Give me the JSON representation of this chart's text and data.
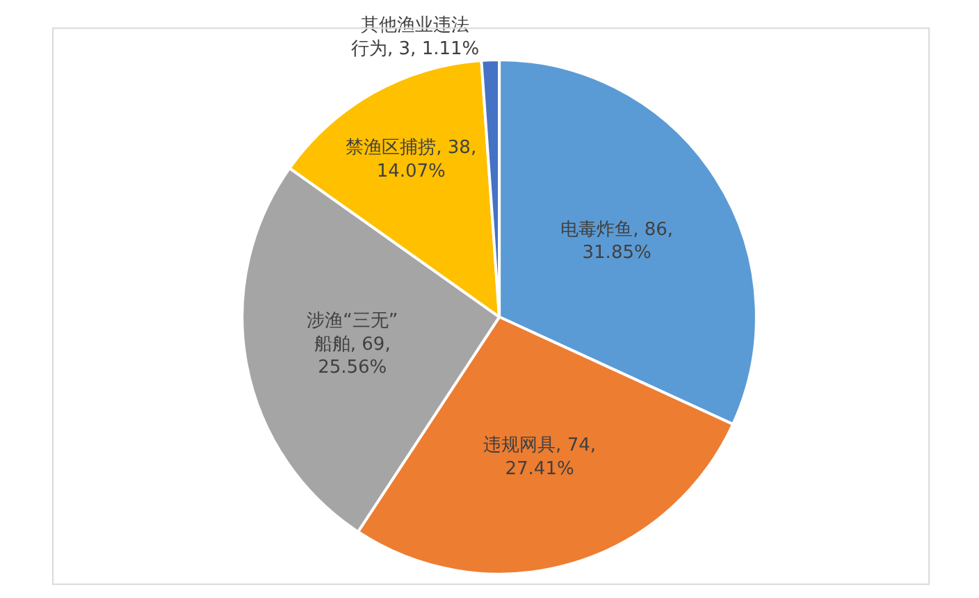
{
  "chart_data": {
    "type": "pie",
    "categories": [
      "电毒炸鱼",
      "违规网具",
      "涉渔“三无”船舶",
      "禁渔区捕捞",
      "其他渔业违法行为"
    ],
    "values": [
      31.85,
      27.41,
      25.56,
      14.07,
      1.11
    ],
    "colors": [
      "#5b9bd5",
      "#ed7d31",
      "#a5a5a5",
      "#ffc000",
      "#4472c4"
    ],
    "value_labels": [
      "86, 31.85%",
      "74, 27.41%",
      "69, 25.56%",
      "38, 14.07%",
      "3, 1.11%"
    ],
    "legend": false
  }
}
